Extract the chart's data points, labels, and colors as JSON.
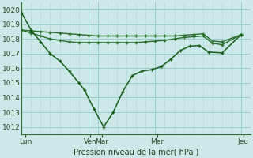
{
  "bg_color": "#cce8e8",
  "grid_color": "#99cccc",
  "line_color_deep": "#1a5c1a",
  "line_color_mid": "#2a6e2a",
  "line_color_flat": "#2a6e2a",
  "title": "Pression niveau de la mer( hPa )",
  "ylim": [
    1011.5,
    1020.5
  ],
  "yticks": [
    1012,
    1013,
    1014,
    1015,
    1016,
    1017,
    1018,
    1019,
    1020
  ],
  "xlim": [
    0,
    12.0
  ],
  "vline_x": [
    3.5,
    4.0,
    7.0,
    11.5
  ],
  "day_tick_x": [
    0.2,
    3.6,
    4.2,
    7.1,
    11.6
  ],
  "day_labels": [
    "Lun",
    "Ven",
    "Mar",
    "Mer",
    "Jeu"
  ],
  "series_deep_x": [
    0.0,
    0.5,
    1.0,
    1.5,
    2.0,
    2.5,
    3.0,
    3.3,
    3.8,
    4.3,
    4.8,
    5.3,
    5.8,
    6.3,
    6.8,
    7.3,
    7.8,
    8.3,
    8.8,
    9.3,
    9.8,
    10.5,
    11.5
  ],
  "series_deep_y": [
    1019.8,
    1018.6,
    1017.8,
    1017.0,
    1016.5,
    1015.8,
    1015.0,
    1014.5,
    1013.2,
    1012.0,
    1013.0,
    1014.4,
    1015.5,
    1015.8,
    1015.9,
    1016.1,
    1016.6,
    1017.2,
    1017.5,
    1017.55,
    1017.1,
    1017.05,
    1018.3
  ],
  "series_mid_x": [
    0.0,
    0.5,
    1.0,
    1.5,
    2.0,
    2.5,
    3.0,
    3.5,
    4.0,
    4.5,
    5.0,
    5.5,
    6.0,
    6.5,
    7.0,
    7.5,
    8.0,
    8.5,
    9.0,
    9.5,
    10.0,
    10.5,
    11.5
  ],
  "series_mid_y": [
    1018.6,
    1018.4,
    1018.2,
    1018.0,
    1017.9,
    1017.8,
    1017.75,
    1017.75,
    1017.75,
    1017.75,
    1017.75,
    1017.75,
    1017.75,
    1017.8,
    1017.85,
    1017.9,
    1018.0,
    1018.1,
    1018.15,
    1018.2,
    1017.7,
    1017.6,
    1018.3
  ],
  "series_flat_x": [
    0.0,
    0.5,
    1.0,
    1.5,
    2.0,
    2.5,
    3.0,
    3.5,
    4.0,
    4.5,
    5.0,
    5.5,
    6.0,
    6.5,
    7.0,
    7.5,
    8.0,
    8.5,
    9.0,
    9.5,
    10.0,
    10.5,
    11.5
  ],
  "series_flat_y": [
    1018.6,
    1018.55,
    1018.5,
    1018.45,
    1018.4,
    1018.35,
    1018.3,
    1018.25,
    1018.2,
    1018.2,
    1018.2,
    1018.2,
    1018.2,
    1018.2,
    1018.2,
    1018.2,
    1018.2,
    1018.25,
    1018.3,
    1018.35,
    1017.85,
    1017.8,
    1018.3
  ]
}
